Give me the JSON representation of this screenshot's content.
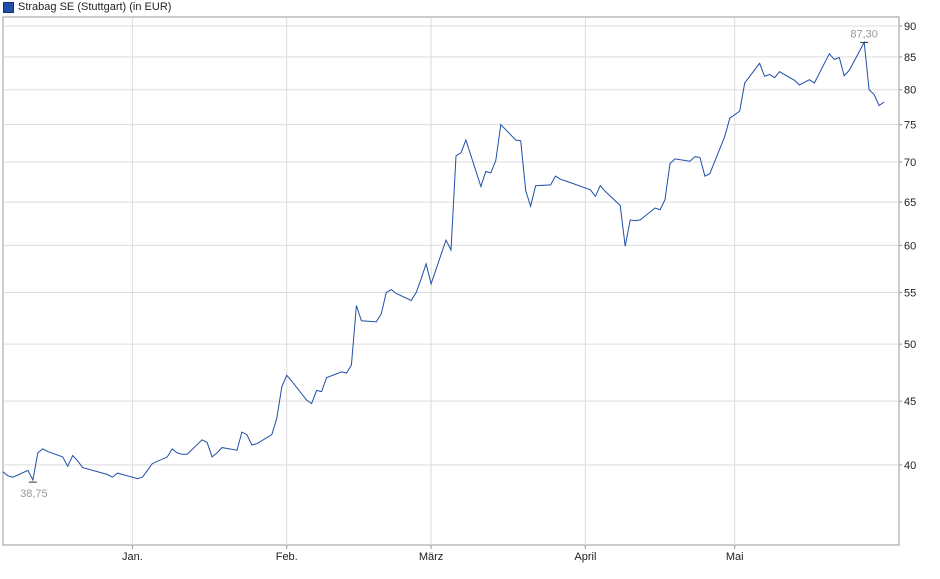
{
  "legend": {
    "label": "Strabag SE (Stuttgart) (in EUR)"
  },
  "colors": {
    "line": "#1f4fa8",
    "grid": "#dddddd",
    "frame": "#999999",
    "annotation": "#999999"
  },
  "chart_data": {
    "type": "line",
    "title": "",
    "xlabel": "",
    "ylabel": "",
    "y_scale": "log",
    "ylim": [
      34.5,
      91.5
    ],
    "yticks": [
      40,
      45,
      50,
      55,
      60,
      65,
      70,
      75,
      80,
      85,
      90
    ],
    "ytick_labels": [
      "40",
      "45",
      "50",
      "55",
      "60",
      "65",
      "70",
      "75",
      "80",
      "85",
      "90"
    ],
    "y_axis_position": "right",
    "grid": true,
    "legend_position": "top-left",
    "xlim": [
      "2023-12-06",
      "2024-06-03"
    ],
    "xticks": [
      {
        "date": "2024-01-01",
        "label": "Jan."
      },
      {
        "date": "2024-02-01",
        "label": "Feb."
      },
      {
        "date": "2024-03-01",
        "label": "März"
      },
      {
        "date": "2024-04-01",
        "label": "April"
      },
      {
        "date": "2024-05-01",
        "label": "Mai"
      }
    ],
    "series": [
      {
        "name": "Strabag SE (Stuttgart) (in EUR)",
        "points": [
          [
            "2023-12-06",
            39.5
          ],
          [
            "2023-12-07",
            39.2
          ],
          [
            "2023-12-08",
            39.1
          ],
          [
            "2023-12-11",
            39.6
          ],
          [
            "2023-12-12",
            38.9
          ],
          [
            "2023-12-13",
            40.9
          ],
          [
            "2023-12-14",
            41.2
          ],
          [
            "2023-12-15",
            41.0
          ],
          [
            "2023-12-18",
            40.6
          ],
          [
            "2023-12-19",
            39.9
          ],
          [
            "2023-12-20",
            40.7
          ],
          [
            "2023-12-21",
            40.3
          ],
          [
            "2023-12-22",
            39.8
          ],
          [
            "2023-12-27",
            39.3
          ],
          [
            "2023-12-28",
            39.1
          ],
          [
            "2023-12-29",
            39.4
          ],
          [
            "2024-01-02",
            39.0
          ],
          [
            "2024-01-03",
            39.1
          ],
          [
            "2024-01-04",
            39.6
          ],
          [
            "2024-01-05",
            40.1
          ],
          [
            "2024-01-08",
            40.6
          ],
          [
            "2024-01-09",
            41.2
          ],
          [
            "2024-01-10",
            40.9
          ],
          [
            "2024-01-11",
            40.8
          ],
          [
            "2024-01-12",
            40.8
          ],
          [
            "2024-01-15",
            41.9
          ],
          [
            "2024-01-16",
            41.7
          ],
          [
            "2024-01-17",
            40.6
          ],
          [
            "2024-01-18",
            40.9
          ],
          [
            "2024-01-19",
            41.3
          ],
          [
            "2024-01-22",
            41.1
          ],
          [
            "2024-01-23",
            42.5
          ],
          [
            "2024-01-24",
            42.3
          ],
          [
            "2024-01-25",
            41.5
          ],
          [
            "2024-01-26",
            41.6
          ],
          [
            "2024-01-29",
            42.3
          ],
          [
            "2024-01-30",
            43.6
          ],
          [
            "2024-01-31",
            46.2
          ],
          [
            "2024-02-01",
            47.2
          ],
          [
            "2024-02-02",
            46.7
          ],
          [
            "2024-02-05",
            45.1
          ],
          [
            "2024-02-06",
            44.8
          ],
          [
            "2024-02-07",
            45.9
          ],
          [
            "2024-02-08",
            45.8
          ],
          [
            "2024-02-09",
            47.0
          ],
          [
            "2024-02-12",
            47.5
          ],
          [
            "2024-02-13",
            47.4
          ],
          [
            "2024-02-14",
            48.1
          ],
          [
            "2024-02-15",
            53.7
          ],
          [
            "2024-02-16",
            52.2
          ],
          [
            "2024-02-19",
            52.1
          ],
          [
            "2024-02-20",
            52.9
          ],
          [
            "2024-02-21",
            55.0
          ],
          [
            "2024-02-22",
            55.3
          ],
          [
            "2024-02-23",
            54.9
          ],
          [
            "2024-02-26",
            54.2
          ],
          [
            "2024-02-27",
            55.0
          ],
          [
            "2024-02-28",
            56.4
          ],
          [
            "2024-02-29",
            58.0
          ],
          [
            "2024-03-01",
            55.9
          ],
          [
            "2024-03-04",
            60.6
          ],
          [
            "2024-03-05",
            59.5
          ],
          [
            "2024-03-06",
            70.8
          ],
          [
            "2024-03-07",
            71.2
          ],
          [
            "2024-03-08",
            72.9
          ],
          [
            "2024-03-11",
            66.9
          ],
          [
            "2024-03-12",
            68.8
          ],
          [
            "2024-03-13",
            68.6
          ],
          [
            "2024-03-14",
            70.2
          ],
          [
            "2024-03-15",
            75.0
          ],
          [
            "2024-03-18",
            72.9
          ],
          [
            "2024-03-19",
            72.8
          ],
          [
            "2024-03-20",
            66.4
          ],
          [
            "2024-03-21",
            64.5
          ],
          [
            "2024-03-22",
            67.0
          ],
          [
            "2024-03-25",
            67.1
          ],
          [
            "2024-03-26",
            68.2
          ],
          [
            "2024-03-27",
            67.8
          ],
          [
            "2024-03-28",
            67.6
          ],
          [
            "2024-04-02",
            66.5
          ],
          [
            "2024-04-03",
            65.7
          ],
          [
            "2024-04-04",
            67.0
          ],
          [
            "2024-04-05",
            66.3
          ],
          [
            "2024-04-08",
            64.6
          ],
          [
            "2024-04-09",
            59.9
          ],
          [
            "2024-04-10",
            62.9
          ],
          [
            "2024-04-11",
            62.8
          ],
          [
            "2024-04-12",
            62.9
          ],
          [
            "2024-04-15",
            64.3
          ],
          [
            "2024-04-16",
            64.1
          ],
          [
            "2024-04-17",
            65.3
          ],
          [
            "2024-04-18",
            69.8
          ],
          [
            "2024-04-19",
            70.4
          ],
          [
            "2024-04-22",
            70.1
          ],
          [
            "2024-04-23",
            70.7
          ],
          [
            "2024-04-24",
            70.6
          ],
          [
            "2024-04-25",
            68.2
          ],
          [
            "2024-04-26",
            68.5
          ],
          [
            "2024-04-29",
            73.4
          ],
          [
            "2024-04-30",
            75.9
          ],
          [
            "2024-05-02",
            76.9
          ],
          [
            "2024-05-03",
            81.0
          ],
          [
            "2024-05-06",
            84.0
          ],
          [
            "2024-05-07",
            82.0
          ],
          [
            "2024-05-08",
            82.3
          ],
          [
            "2024-05-09",
            81.8
          ],
          [
            "2024-05-10",
            82.7
          ],
          [
            "2024-05-13",
            81.4
          ],
          [
            "2024-05-14",
            80.7
          ],
          [
            "2024-05-15",
            81.1
          ],
          [
            "2024-05-16",
            81.5
          ],
          [
            "2024-05-17",
            81.0
          ],
          [
            "2024-05-20",
            85.5
          ],
          [
            "2024-05-21",
            84.6
          ],
          [
            "2024-05-22",
            84.9
          ],
          [
            "2024-05-23",
            82.1
          ],
          [
            "2024-05-24",
            82.9
          ],
          [
            "2024-05-27",
            87.3
          ],
          [
            "2024-05-28",
            80.0
          ],
          [
            "2024-05-29",
            79.3
          ],
          [
            "2024-05-30",
            77.7
          ],
          [
            "2024-05-31",
            78.2
          ]
        ]
      }
    ],
    "annotations": [
      {
        "date": "2023-12-12",
        "value": 38.75,
        "text": "38,75",
        "kind": "min"
      },
      {
        "date": "2024-05-27",
        "value": 87.3,
        "text": "87,30",
        "kind": "max"
      }
    ]
  }
}
